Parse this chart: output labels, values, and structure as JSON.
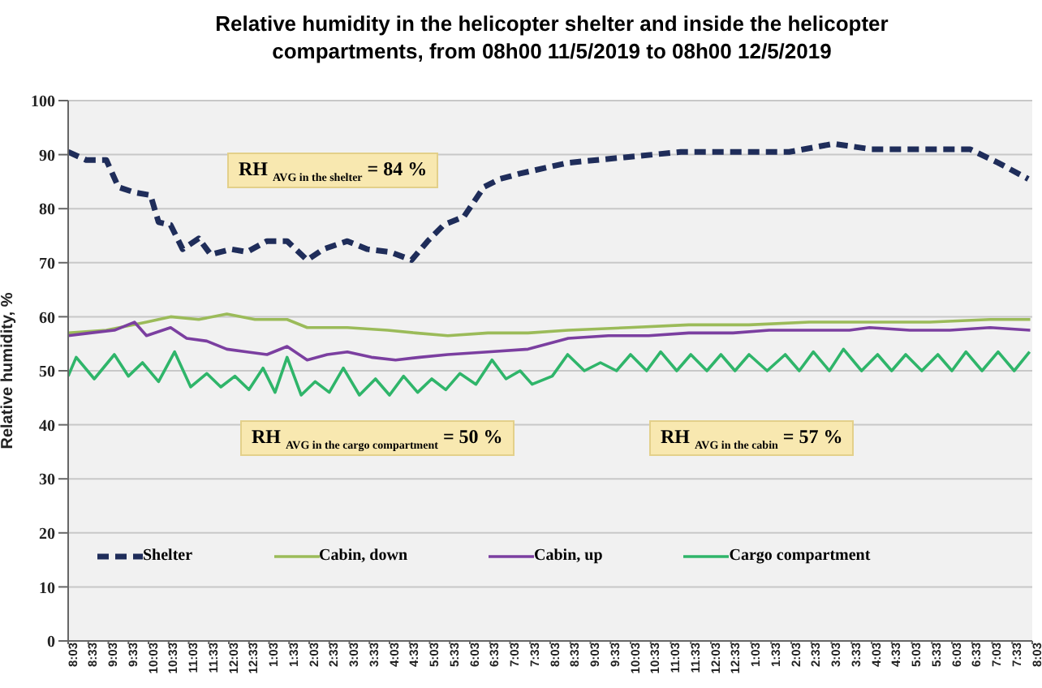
{
  "chart_data": {
    "type": "line",
    "title": "Relative humidity in the helicopter shelter and inside the helicopter compartments, from 08h00  11/5/2019 to 08h00 12/5/2019",
    "ylabel": "Relative humidity, %",
    "xlim": [
      "2019-05-11T08:03",
      "2019-05-12T08:03"
    ],
    "xticks": [
      {
        "value": "2019-05-11T08:03",
        "label": "8:03"
      },
      {
        "value": "2019-05-11T08:33",
        "label": "8:33"
      },
      {
        "value": "2019-05-11T09:03",
        "label": "9:03"
      },
      {
        "value": "2019-05-11T09:33",
        "label": "9:33"
      },
      {
        "value": "2019-05-11T10:03",
        "label": "10:03"
      },
      {
        "value": "2019-05-11T10:33",
        "label": "10:33"
      },
      {
        "value": "2019-05-11T11:03",
        "label": "11:03"
      },
      {
        "value": "2019-05-11T11:33",
        "label": "11:33"
      },
      {
        "value": "2019-05-11T12:03",
        "label": "12:03"
      },
      {
        "value": "2019-05-11T12:33",
        "label": "12:33"
      },
      {
        "value": "2019-05-11T13:03",
        "label": "1:03"
      },
      {
        "value": "2019-05-11T13:33",
        "label": "1:33"
      },
      {
        "value": "2019-05-11T14:03",
        "label": "2:03"
      },
      {
        "value": "2019-05-11T14:33",
        "label": "2:33"
      },
      {
        "value": "2019-05-11T15:03",
        "label": "3:03"
      },
      {
        "value": "2019-05-11T15:33",
        "label": "3:33"
      },
      {
        "value": "2019-05-11T16:03",
        "label": "4:03"
      },
      {
        "value": "2019-05-11T16:33",
        "label": "4:33"
      },
      {
        "value": "2019-05-11T17:03",
        "label": "5:03"
      },
      {
        "value": "2019-05-11T17:33",
        "label": "5:33"
      },
      {
        "value": "2019-05-11T18:03",
        "label": "6:03"
      },
      {
        "value": "2019-05-11T18:33",
        "label": "6:33"
      },
      {
        "value": "2019-05-11T19:03",
        "label": "7:03"
      },
      {
        "value": "2019-05-11T19:33",
        "label": "7:33"
      },
      {
        "value": "2019-05-11T20:03",
        "label": "8:03"
      },
      {
        "value": "2019-05-11T20:33",
        "label": "8:33"
      },
      {
        "value": "2019-05-11T21:03",
        "label": "9:03"
      },
      {
        "value": "2019-05-11T21:33",
        "label": "9:33"
      },
      {
        "value": "2019-05-11T22:03",
        "label": "10:03"
      },
      {
        "value": "2019-05-11T22:33",
        "label": "10:33"
      },
      {
        "value": "2019-05-11T23:03",
        "label": "11:03"
      },
      {
        "value": "2019-05-11T23:33",
        "label": "11:33"
      },
      {
        "value": "2019-05-12T00:03",
        "label": "12:03"
      },
      {
        "value": "2019-05-12T00:33",
        "label": "12:33"
      },
      {
        "value": "2019-05-12T01:03",
        "label": "1:03"
      },
      {
        "value": "2019-05-12T01:33",
        "label": "1:33"
      },
      {
        "value": "2019-05-12T02:03",
        "label": "2:03"
      },
      {
        "value": "2019-05-12T02:33",
        "label": "2:33"
      },
      {
        "value": "2019-05-12T03:03",
        "label": "3:03"
      },
      {
        "value": "2019-05-12T03:33",
        "label": "3:33"
      },
      {
        "value": "2019-05-12T04:03",
        "label": "4:03"
      },
      {
        "value": "2019-05-12T04:33",
        "label": "4:33"
      },
      {
        "value": "2019-05-12T05:03",
        "label": "5:03"
      },
      {
        "value": "2019-05-12T05:33",
        "label": "5:33"
      },
      {
        "value": "2019-05-12T06:03",
        "label": "6:03"
      },
      {
        "value": "2019-05-12T06:33",
        "label": "6:33"
      },
      {
        "value": "2019-05-12T07:03",
        "label": "7:03"
      },
      {
        "value": "2019-05-12T07:33",
        "label": "7:33"
      },
      {
        "value": "2019-05-12T08:03",
        "label": "8:03"
      }
    ],
    "ylim": [
      0,
      100
    ],
    "yticks": [
      0,
      10,
      20,
      30,
      40,
      50,
      60,
      70,
      80,
      90,
      100
    ],
    "grid": "y",
    "legend": "bottom",
    "marker": "none",
    "series": [
      {
        "name": "Shelter",
        "color": "#1f2d5a",
        "line_style": "dashed",
        "x": [
          "2019-05-11T08:03",
          "2019-05-11T08:30",
          "2019-05-11T09:00",
          "2019-05-11T09:18",
          "2019-05-11T09:42",
          "2019-05-11T10:06",
          "2019-05-11T10:18",
          "2019-05-11T10:36",
          "2019-05-11T10:54",
          "2019-05-11T11:18",
          "2019-05-11T11:36",
          "2019-05-11T12:06",
          "2019-05-11T12:30",
          "2019-05-11T13:00",
          "2019-05-11T13:30",
          "2019-05-11T14:00",
          "2019-05-11T14:24",
          "2019-05-11T15:00",
          "2019-05-11T15:30",
          "2019-05-11T16:03",
          "2019-05-11T16:36",
          "2019-05-11T17:00",
          "2019-05-11T17:24",
          "2019-05-11T17:54",
          "2019-05-11T18:24",
          "2019-05-11T18:48",
          "2019-05-11T19:18",
          "2019-05-11T20:30",
          "2019-05-11T21:54",
          "2019-05-11T23:18",
          "2019-05-12T00:36",
          "2019-05-12T02:00",
          "2019-05-12T03:06",
          "2019-05-12T04:03",
          "2019-05-12T05:24",
          "2019-05-12T06:30",
          "2019-05-12T07:12",
          "2019-05-12T07:57"
        ],
        "values": [
          90.5,
          89,
          89,
          84,
          83,
          82.5,
          77.5,
          77,
          72.5,
          74.5,
          71.5,
          72.5,
          72,
          74,
          74,
          70.5,
          72.5,
          74,
          72.5,
          72,
          70.5,
          74,
          77,
          78.5,
          84,
          85.5,
          86.5,
          88.5,
          89.5,
          90.5,
          90.5,
          90.5,
          92,
          91,
          91,
          91,
          88.5,
          85.5
        ]
      },
      {
        "name": "Cabin, down",
        "color": "#9bbb59",
        "line_style": "solid",
        "x": [
          "2019-05-11T08:03",
          "2019-05-11T09:00",
          "2019-05-11T10:00",
          "2019-05-11T10:36",
          "2019-05-11T11:18",
          "2019-05-11T12:00",
          "2019-05-11T12:42",
          "2019-05-11T13:30",
          "2019-05-11T14:00",
          "2019-05-11T15:00",
          "2019-05-11T16:00",
          "2019-05-11T16:42",
          "2019-05-11T17:30",
          "2019-05-11T18:30",
          "2019-05-11T19:30",
          "2019-05-11T20:30",
          "2019-05-11T22:00",
          "2019-05-11T23:30",
          "2019-05-12T01:00",
          "2019-05-12T02:30",
          "2019-05-12T04:00",
          "2019-05-12T05:30",
          "2019-05-12T07:00",
          "2019-05-12T08:00"
        ],
        "values": [
          57,
          57.5,
          59,
          60,
          59.5,
          60.5,
          59.5,
          59.5,
          58,
          58,
          57.5,
          57,
          56.5,
          57,
          57,
          57.5,
          58,
          58.5,
          58.5,
          59,
          59,
          59,
          59.5,
          59.5
        ]
      },
      {
        "name": "Cabin, up",
        "color": "#7b3fa0",
        "line_style": "solid",
        "x": [
          "2019-05-11T08:03",
          "2019-05-11T08:36",
          "2019-05-11T09:12",
          "2019-05-11T09:42",
          "2019-05-11T10:00",
          "2019-05-11T10:36",
          "2019-05-11T11:00",
          "2019-05-11T11:30",
          "2019-05-11T12:00",
          "2019-05-11T12:30",
          "2019-05-11T13:00",
          "2019-05-11T13:30",
          "2019-05-11T14:00",
          "2019-05-11T14:30",
          "2019-05-11T15:00",
          "2019-05-11T15:36",
          "2019-05-11T16:12",
          "2019-05-11T16:48",
          "2019-05-11T17:30",
          "2019-05-11T18:30",
          "2019-05-11T19:30",
          "2019-05-11T20:30",
          "2019-05-11T21:30",
          "2019-05-11T22:30",
          "2019-05-11T23:30",
          "2019-05-12T00:36",
          "2019-05-12T01:30",
          "2019-05-12T02:30",
          "2019-05-12T03:30",
          "2019-05-12T04:00",
          "2019-05-12T05:00",
          "2019-05-12T06:00",
          "2019-05-12T07:00",
          "2019-05-12T08:00"
        ],
        "values": [
          56.5,
          57,
          57.5,
          59,
          56.5,
          58,
          56,
          55.5,
          54,
          53.5,
          53,
          54.5,
          52,
          53,
          53.5,
          52.5,
          52,
          52.5,
          53,
          53.5,
          54,
          56,
          56.5,
          56.5,
          57,
          57,
          57.5,
          57.5,
          57.5,
          58,
          57.5,
          57.5,
          58,
          57.5
        ]
      },
      {
        "name": "Cargo compartment",
        "color": "#2fb56a",
        "line_style": "solid",
        "x": [
          "2019-05-11T08:03",
          "2019-05-11T08:15",
          "2019-05-11T08:42",
          "2019-05-11T09:12",
          "2019-05-11T09:33",
          "2019-05-11T09:54",
          "2019-05-11T10:18",
          "2019-05-11T10:42",
          "2019-05-11T11:06",
          "2019-05-11T11:30",
          "2019-05-11T11:51",
          "2019-05-11T12:12",
          "2019-05-11T12:33",
          "2019-05-11T12:54",
          "2019-05-11T13:12",
          "2019-05-11T13:30",
          "2019-05-11T13:51",
          "2019-05-11T14:12",
          "2019-05-11T14:33",
          "2019-05-11T14:54",
          "2019-05-11T15:18",
          "2019-05-11T15:42",
          "2019-05-11T16:03",
          "2019-05-11T16:24",
          "2019-05-11T16:45",
          "2019-05-11T17:06",
          "2019-05-11T17:27",
          "2019-05-11T17:48",
          "2019-05-11T18:12",
          "2019-05-11T18:36",
          "2019-05-11T18:57",
          "2019-05-11T19:18",
          "2019-05-11T19:36",
          "2019-05-11T20:06",
          "2019-05-11T20:29",
          "2019-05-11T20:54",
          "2019-05-11T21:18",
          "2019-05-11T21:42",
          "2019-05-11T22:03",
          "2019-05-11T22:27",
          "2019-05-11T22:48",
          "2019-05-11T23:12",
          "2019-05-11T23:33",
          "2019-05-11T23:57",
          "2019-05-12T00:18",
          "2019-05-12T00:39",
          "2019-05-12T01:00",
          "2019-05-12T01:27",
          "2019-05-12T01:54",
          "2019-05-12T02:15",
          "2019-05-12T02:36",
          "2019-05-12T03:00",
          "2019-05-12T03:21",
          "2019-05-12T03:48",
          "2019-05-12T04:12",
          "2019-05-12T04:33",
          "2019-05-12T04:54",
          "2019-05-12T05:18",
          "2019-05-12T05:42",
          "2019-05-12T06:03",
          "2019-05-12T06:24",
          "2019-05-12T06:48",
          "2019-05-12T07:12",
          "2019-05-12T07:36",
          "2019-05-12T07:59"
        ],
        "values": [
          49,
          52.5,
          48.5,
          53,
          49,
          51.5,
          48,
          53.5,
          47,
          49.5,
          47,
          49,
          46.5,
          50.5,
          46,
          52.5,
          45.5,
          48,
          46,
          50.5,
          45.5,
          48.5,
          45.5,
          49,
          46,
          48.5,
          46.5,
          49.5,
          47.5,
          52,
          48.5,
          50,
          47.5,
          49,
          53,
          50,
          51.5,
          50,
          53,
          50,
          53.5,
          50,
          53,
          50,
          53,
          50,
          53,
          50,
          53,
          50,
          53.5,
          50,
          54,
          50,
          53,
          50,
          53,
          50,
          53,
          50,
          53.5,
          50,
          53.5,
          50,
          53.5
        ]
      }
    ],
    "annotations": [
      "RH $_{AVG in the shelter}$ = 84 %",
      "RH $_{AVG in the cargo compartment}$ = 50 %",
      "RH $_{AVG in the cabin}$ = 57 %"
    ]
  }
}
